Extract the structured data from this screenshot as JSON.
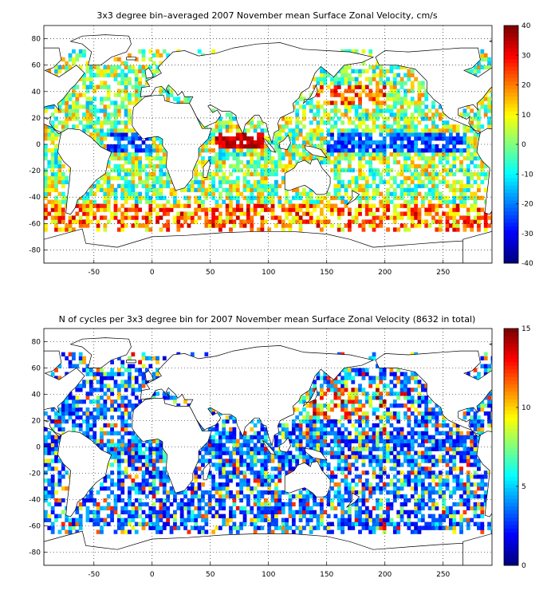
{
  "chart_data": [
    {
      "type": "heatmap",
      "title": "3x3 degree bin–averaged 2007 November mean Surface Zonal Velocity, cm/s",
      "xlim": [
        -93,
        292
      ],
      "ylim": [
        -90,
        90
      ],
      "x_ticks": [
        -50,
        0,
        50,
        100,
        150,
        200,
        250
      ],
      "x_tick_labels": [
        "-50",
        "0",
        "50",
        "100",
        "150",
        "200",
        "250"
      ],
      "y_ticks": [
        80,
        60,
        40,
        20,
        0,
        -20,
        -40,
        -60,
        -80
      ],
      "y_tick_labels": [
        "80",
        "60",
        "40",
        "20",
        "0",
        "-20",
        "-40",
        "-60",
        "-80"
      ],
      "grid": true,
      "colormap": "jet",
      "colorbar": {
        "range": [
          -40,
          40
        ],
        "ticks": [
          40,
          30,
          20,
          10,
          0,
          -10,
          -20,
          -30,
          -40
        ],
        "tick_labels": [
          "40",
          "30",
          "20",
          "10",
          "0",
          "-10",
          "-20",
          "-30",
          "-40"
        ]
      },
      "bin_size_deg": 3
    },
    {
      "type": "heatmap",
      "title": "N of cycles per 3x3 degree bin for 2007 November mean Surface Zonal Velocity (8632 in total)",
      "xlim": [
        -93,
        292
      ],
      "ylim": [
        -90,
        90
      ],
      "x_ticks": [
        -50,
        0,
        50,
        100,
        150,
        200,
        250
      ],
      "x_tick_labels": [
        "-50",
        "0",
        "50",
        "100",
        "150",
        "200",
        "250"
      ],
      "y_ticks": [
        80,
        60,
        40,
        20,
        0,
        -20,
        -40,
        -60,
        -80
      ],
      "y_tick_labels": [
        "80",
        "60",
        "40",
        "20",
        "0",
        "-20",
        "-40",
        "-60",
        "-80"
      ],
      "grid": true,
      "colormap": "jet",
      "colorbar": {
        "range": [
          0,
          15
        ],
        "ticks": [
          15,
          10,
          5,
          0
        ],
        "tick_labels": [
          "15",
          "10",
          "5",
          "0"
        ]
      },
      "bin_size_deg": 3,
      "total_cycles": 8632
    }
  ]
}
